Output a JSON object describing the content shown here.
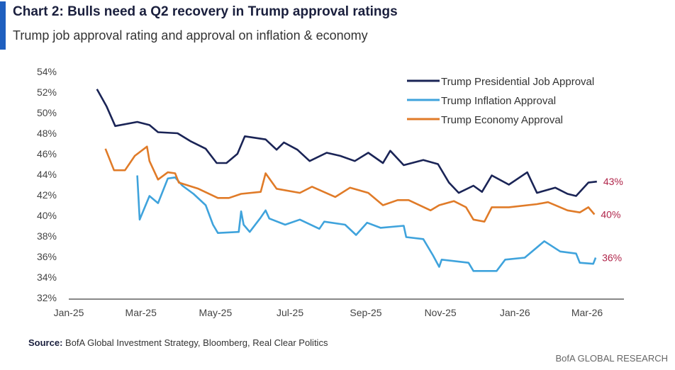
{
  "header": {
    "title": "Chart 2: Bulls need a Q2 recovery in Trump approval ratings",
    "subtitle": "Trump job approval rating and approval on inflation & economy"
  },
  "footer": {
    "source_label": "Source:",
    "source_text": " BofA Global Investment Strategy, Bloomberg, Real Clear Politics",
    "brand": "BofA GLOBAL RESEARCH"
  },
  "chart_data": {
    "type": "line",
    "title": "Chart 2: Bulls need a Q2 recovery in Trump approval ratings",
    "subtitle": "Trump job approval rating and approval on inflation & economy",
    "xlabel": "",
    "ylabel": "",
    "ylim": [
      32,
      54
    ],
    "xlim": [
      "2025-01-01",
      "2026-03-31"
    ],
    "grid": false,
    "legend_placement": "top-right",
    "y_ticks": [
      "32%",
      "34%",
      "36%",
      "38%",
      "40%",
      "42%",
      "44%",
      "46%",
      "48%",
      "50%",
      "52%",
      "54%"
    ],
    "x_ticks": [
      {
        "date": "2025-01-01",
        "label": "Jan-25"
      },
      {
        "date": "2025-03-01",
        "label": "Mar-25"
      },
      {
        "date": "2025-05-01",
        "label": "May-25"
      },
      {
        "date": "2025-07-01",
        "label": "Jul-25"
      },
      {
        "date": "2025-09-01",
        "label": "Sep-25"
      },
      {
        "date": "2025-11-01",
        "label": "Nov-25"
      },
      {
        "date": "2026-01-01",
        "label": "Jan-26"
      },
      {
        "date": "2026-03-01",
        "label": "Mar-26"
      }
    ],
    "series": [
      {
        "name": "Trump Presidential Job Approval",
        "color": "#1a2456",
        "end_label": "43%",
        "x": [
          "2025-01-24",
          "2025-02-01",
          "2025-02-08",
          "2025-02-26",
          "2025-03-08",
          "2025-03-15",
          "2025-03-31",
          "2025-04-11",
          "2025-04-23",
          "2025-05-02",
          "2025-05-10",
          "2025-05-19",
          "2025-05-25",
          "2025-06-11",
          "2025-06-20",
          "2025-06-26",
          "2025-07-07",
          "2025-07-17",
          "2025-07-31",
          "2025-08-11",
          "2025-08-23",
          "2025-09-03",
          "2025-09-15",
          "2025-09-21",
          "2025-10-02",
          "2025-10-18",
          "2025-10-30",
          "2025-11-08",
          "2025-11-16",
          "2025-11-28",
          "2025-12-05",
          "2025-12-13",
          "2025-12-27",
          "2026-01-11",
          "2026-01-19",
          "2026-02-03",
          "2026-02-13",
          "2026-02-20",
          "2026-03-02",
          "2026-03-09"
        ],
        "y": [
          52.3,
          50.6,
          48.7,
          49.1,
          48.8,
          48.1,
          48.0,
          47.2,
          46.5,
          45.1,
          45.1,
          46.0,
          47.7,
          47.4,
          46.4,
          47.1,
          46.4,
          45.3,
          46.1,
          45.8,
          45.3,
          46.1,
          45.1,
          46.3,
          44.9,
          45.4,
          45.0,
          43.2,
          42.2,
          42.9,
          42.3,
          43.9,
          43.0,
          44.2,
          42.2,
          42.7,
          42.1,
          41.9,
          43.2,
          43.3
        ]
      },
      {
        "name": "Trump Inflation Approval",
        "color": "#3fa3dc",
        "end_label": "36%",
        "x": [
          "2025-02-26",
          "2025-02-28",
          "2025-03-08",
          "2025-03-15",
          "2025-03-23",
          "2025-03-29",
          "2025-04-04",
          "2025-04-13",
          "2025-04-23",
          "2025-04-29",
          "2025-05-03",
          "2025-05-20",
          "2025-05-22",
          "2025-05-24",
          "2025-05-29",
          "2025-06-07",
          "2025-06-11",
          "2025-06-14",
          "2025-06-27",
          "2025-07-09",
          "2025-07-25",
          "2025-07-29",
          "2025-08-15",
          "2025-08-24",
          "2025-09-02",
          "2025-09-13",
          "2025-10-02",
          "2025-10-04",
          "2025-10-18",
          "2025-10-26",
          "2025-10-31",
          "2025-11-02",
          "2025-11-24",
          "2025-11-28",
          "2025-12-17",
          "2025-12-24",
          "2026-01-09",
          "2026-01-25",
          "2026-02-07",
          "2026-02-20",
          "2026-02-23",
          "2026-03-06",
          "2026-03-08"
        ],
        "y": [
          43.9,
          39.6,
          41.9,
          41.2,
          43.6,
          43.7,
          42.9,
          42.1,
          41.0,
          39.1,
          38.3,
          38.4,
          40.4,
          39.1,
          38.4,
          39.8,
          40.5,
          39.7,
          39.1,
          39.6,
          38.7,
          39.4,
          39.1,
          38.1,
          39.3,
          38.8,
          39.0,
          37.9,
          37.7,
          36.1,
          35.0,
          35.7,
          35.4,
          34.6,
          34.6,
          35.7,
          35.9,
          37.5,
          36.5,
          36.3,
          35.4,
          35.3,
          35.9
        ]
      },
      {
        "name": "Trump Economy Approval",
        "color": "#e07b28",
        "end_label": "40%",
        "x": [
          "2025-01-31",
          "2025-02-07",
          "2025-02-16",
          "2025-02-24",
          "2025-03-06",
          "2025-03-08",
          "2025-03-15",
          "2025-03-23",
          "2025-03-29",
          "2025-04-01",
          "2025-04-17",
          "2025-05-03",
          "2025-05-12",
          "2025-05-22",
          "2025-06-07",
          "2025-06-11",
          "2025-06-20",
          "2025-07-09",
          "2025-07-19",
          "2025-08-07",
          "2025-08-19",
          "2025-09-03",
          "2025-09-15",
          "2025-09-27",
          "2025-10-06",
          "2025-10-24",
          "2025-10-31",
          "2025-11-12",
          "2025-11-22",
          "2025-11-28",
          "2025-12-07",
          "2025-12-13",
          "2025-12-27",
          "2026-01-19",
          "2026-01-28",
          "2026-02-13",
          "2026-02-23",
          "2026-03-02",
          "2026-03-07"
        ],
        "y": [
          46.5,
          44.4,
          44.4,
          45.8,
          46.7,
          45.3,
          43.5,
          44.2,
          44.1,
          43.2,
          42.6,
          41.7,
          41.7,
          42.1,
          42.3,
          44.1,
          42.6,
          42.2,
          42.8,
          41.8,
          42.7,
          42.2,
          41.0,
          41.5,
          41.5,
          40.5,
          41.0,
          41.4,
          40.8,
          39.6,
          39.4,
          40.8,
          40.8,
          41.1,
          41.3,
          40.5,
          40.3,
          40.8,
          40.1
        ]
      }
    ],
    "end_label_color": "#b0254a"
  }
}
